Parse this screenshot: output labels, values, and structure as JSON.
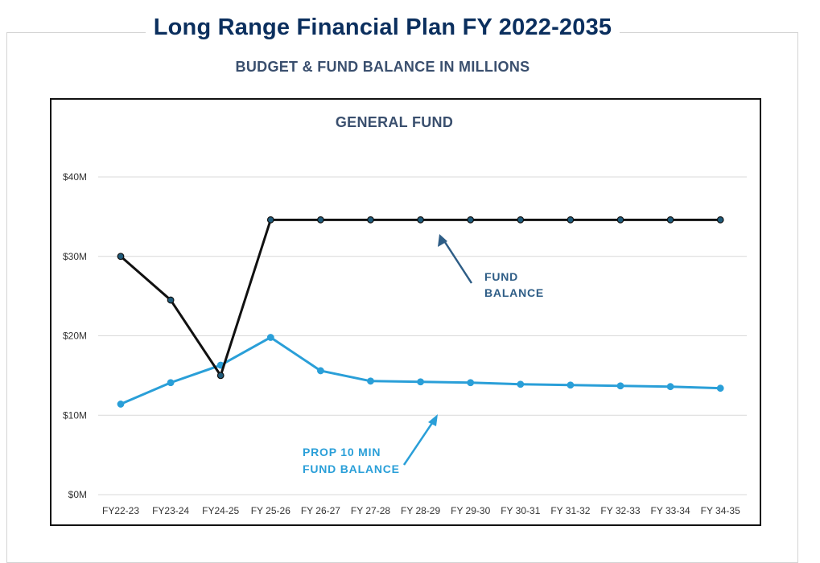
{
  "header": {
    "title": "Long Range Financial Plan FY 2022-2035",
    "subtitle": "BUDGET & FUND BALANCE IN MILLIONS"
  },
  "colors": {
    "title": "#0b2f5e",
    "subtitle": "#3a4f6e",
    "fund_balance": "#111111",
    "fund_balance_marker": "#1f5a7a",
    "prop10": "#2a9fd8",
    "fund_arrow": "#2e5d86"
  },
  "chart_data": {
    "type": "line",
    "title": "GENERAL FUND",
    "xlabel": "",
    "ylabel": "",
    "ylim": [
      0,
      40
    ],
    "y_ticks": [
      {
        "value": 0,
        "label": "$0M"
      },
      {
        "value": 10,
        "label": "$10M"
      },
      {
        "value": 20,
        "label": "$20M"
      },
      {
        "value": 30,
        "label": "$30M"
      },
      {
        "value": 40,
        "label": "$40M"
      }
    ],
    "grid": true,
    "categories": [
      "FY22-23",
      "FY23-24",
      "FY24-25",
      "FY 25-26",
      "FY 26-27",
      "FY 27-28",
      "FY 28-29",
      "FY 29-30",
      "FY 30-31",
      "FY 31-32",
      "FY 32-33",
      "FY 33-34",
      "FY 34-35"
    ],
    "series": [
      {
        "name": "FUND BALANCE",
        "values": [
          30.0,
          24.5,
          15.0,
          34.6,
          34.6,
          34.6,
          34.6,
          34.6,
          34.6,
          34.6,
          34.6,
          34.6,
          34.6
        ]
      },
      {
        "name": "PROP 10 MIN FUND BALANCE",
        "values": [
          11.4,
          14.1,
          16.3,
          19.8,
          15.6,
          14.3,
          14.2,
          14.1,
          13.9,
          13.8,
          13.7,
          13.6,
          13.4
        ]
      }
    ],
    "annotations": [
      {
        "line1": "FUND",
        "line2": "BALANCE",
        "series": "FUND BALANCE"
      },
      {
        "line1": "PROP 10 MIN",
        "line2": "FUND BALANCE",
        "series": "PROP 10 MIN FUND BALANCE"
      }
    ]
  }
}
